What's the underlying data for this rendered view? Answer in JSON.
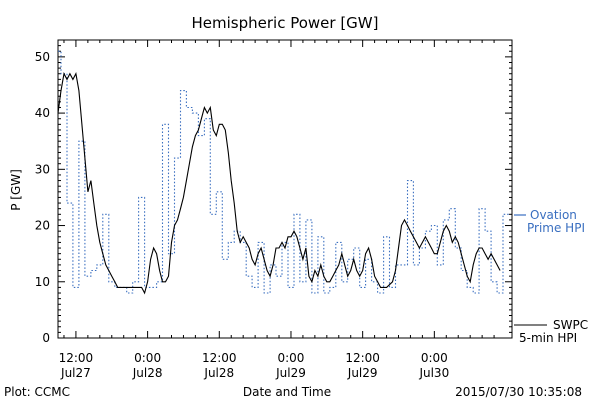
{
  "chart_data": {
    "type": "line",
    "title": "Hemispheric Power [GW]",
    "xlabel": "Date and Time",
    "ylabel": "P [GW]",
    "ylim": [
      0,
      53
    ],
    "xlim": [
      -3,
      73
    ],
    "yticks": [
      0,
      10,
      20,
      30,
      40,
      50
    ],
    "xticks": [
      {
        "x": 0,
        "time": "12:00",
        "date": "Jul27"
      },
      {
        "x": 12,
        "time": "0:00",
        "date": "Jul28"
      },
      {
        "x": 24,
        "time": "12:00",
        "date": "Jul28"
      },
      {
        "x": 36,
        "time": "0:00",
        "date": "Jul29"
      },
      {
        "x": 48,
        "time": "12:00",
        "date": "Jul29"
      },
      {
        "x": 60,
        "time": "0:00",
        "date": "Jul30"
      }
    ],
    "x_units": "hours after 2015-07-27 12:00 UT",
    "series": [
      {
        "name": "SWPC 5-min HPI",
        "legend_lines": [
          "SWPC",
          "5-min HPI"
        ],
        "color": "#000000",
        "style": "solid",
        "points": [
          [
            -3,
            40
          ],
          [
            -2.5,
            44
          ],
          [
            -2,
            47
          ],
          [
            -1.5,
            46
          ],
          [
            -1,
            47
          ],
          [
            -0.5,
            46
          ],
          [
            0,
            47
          ],
          [
            0.5,
            44
          ],
          [
            1,
            38
          ],
          [
            1.5,
            32
          ],
          [
            2,
            26
          ],
          [
            2.5,
            28
          ],
          [
            3,
            24
          ],
          [
            3.5,
            20
          ],
          [
            4,
            17
          ],
          [
            4.5,
            15
          ],
          [
            5,
            13
          ],
          [
            5.5,
            12
          ],
          [
            6,
            11
          ],
          [
            6.5,
            10
          ],
          [
            7,
            9
          ],
          [
            8,
            9
          ],
          [
            9,
            9
          ],
          [
            10,
            9
          ],
          [
            11,
            9
          ],
          [
            11.5,
            8
          ],
          [
            12,
            10
          ],
          [
            12.5,
            14
          ],
          [
            13,
            16
          ],
          [
            13.5,
            15
          ],
          [
            14,
            12
          ],
          [
            14.5,
            10
          ],
          [
            15,
            10
          ],
          [
            15.5,
            11
          ],
          [
            16,
            17
          ],
          [
            16.5,
            20
          ],
          [
            17,
            21
          ],
          [
            17.5,
            23
          ],
          [
            18,
            25
          ],
          [
            18.5,
            28
          ],
          [
            19,
            31
          ],
          [
            19.5,
            34
          ],
          [
            20,
            36
          ],
          [
            20.5,
            37
          ],
          [
            21,
            39
          ],
          [
            21.5,
            41
          ],
          [
            22,
            40
          ],
          [
            22.5,
            41
          ],
          [
            23,
            37
          ],
          [
            23.5,
            36
          ],
          [
            24,
            38
          ],
          [
            24.5,
            38
          ],
          [
            25,
            37
          ],
          [
            25.5,
            33
          ],
          [
            26,
            28
          ],
          [
            26.5,
            24
          ],
          [
            27,
            19
          ],
          [
            27.5,
            17
          ],
          [
            28,
            18
          ],
          [
            28.5,
            17
          ],
          [
            29,
            16
          ],
          [
            29.5,
            14
          ],
          [
            30,
            13
          ],
          [
            30.5,
            15
          ],
          [
            31,
            16
          ],
          [
            31.5,
            14
          ],
          [
            32,
            12
          ],
          [
            32.5,
            11
          ],
          [
            33,
            13
          ],
          [
            33.5,
            16
          ],
          [
            34,
            16
          ],
          [
            34.5,
            17
          ],
          [
            35,
            16
          ],
          [
            35.5,
            18
          ],
          [
            36,
            18
          ],
          [
            36.5,
            19
          ],
          [
            37,
            18
          ],
          [
            37.5,
            16
          ],
          [
            38,
            14
          ],
          [
            38.5,
            16
          ],
          [
            39,
            11
          ],
          [
            39.5,
            10
          ],
          [
            40,
            12
          ],
          [
            40.5,
            11
          ],
          [
            41,
            13
          ],
          [
            41.5,
            11
          ],
          [
            42,
            10
          ],
          [
            42.5,
            10
          ],
          [
            43,
            11
          ],
          [
            43.5,
            12
          ],
          [
            44,
            13
          ],
          [
            44.5,
            15
          ],
          [
            45,
            13
          ],
          [
            45.5,
            11
          ],
          [
            46,
            12
          ],
          [
            46.5,
            14
          ],
          [
            47,
            12
          ],
          [
            47.5,
            11
          ],
          [
            48,
            12
          ],
          [
            48.5,
            15
          ],
          [
            49,
            16
          ],
          [
            49.5,
            14
          ],
          [
            50,
            11
          ],
          [
            50.5,
            10
          ],
          [
            51,
            9
          ],
          [
            52,
            9
          ],
          [
            53,
            10
          ],
          [
            53.5,
            12
          ],
          [
            54,
            16
          ],
          [
            54.5,
            20
          ],
          [
            55,
            21
          ],
          [
            55.5,
            20
          ],
          [
            56,
            19
          ],
          [
            56.5,
            18
          ],
          [
            57,
            17
          ],
          [
            57.5,
            16
          ],
          [
            58,
            17
          ],
          [
            58.5,
            18
          ],
          [
            59,
            17
          ],
          [
            59.5,
            16
          ],
          [
            60,
            15
          ],
          [
            60.5,
            15
          ],
          [
            61,
            17
          ],
          [
            61.5,
            19
          ],
          [
            62,
            20
          ],
          [
            62.5,
            19
          ],
          [
            63,
            17
          ],
          [
            63.5,
            18
          ],
          [
            64,
            17
          ],
          [
            64.5,
            15
          ],
          [
            65,
            13
          ],
          [
            65.5,
            11
          ],
          [
            66,
            10
          ],
          [
            66.5,
            13
          ],
          [
            67,
            15
          ],
          [
            67.5,
            16
          ],
          [
            68,
            16
          ],
          [
            68.5,
            15
          ],
          [
            69,
            14
          ],
          [
            69.5,
            15
          ],
          [
            70,
            14
          ],
          [
            70.5,
            13
          ],
          [
            71,
            12
          ]
        ]
      },
      {
        "name": "Ovation Prime HPI",
        "legend_lines": [
          "Ovation",
          "Prime HPI"
        ],
        "color": "#3a6fc0",
        "style": "dotted-step",
        "steps": [
          [
            -3,
            -2.5,
            51
          ],
          [
            -2.5,
            -1.5,
            47
          ],
          [
            -1.5,
            -0.5,
            24
          ],
          [
            -0.5,
            0.5,
            9
          ],
          [
            0.5,
            1.5,
            35
          ],
          [
            1.5,
            2.5,
            11
          ],
          [
            2.5,
            3.5,
            12
          ],
          [
            3.5,
            4.5,
            13
          ],
          [
            4.5,
            5.5,
            22
          ],
          [
            5.5,
            6.5,
            10
          ],
          [
            6.5,
            7.5,
            9
          ],
          [
            7.5,
            8.5,
            9
          ],
          [
            8.5,
            9.5,
            8
          ],
          [
            9.5,
            10.5,
            10
          ],
          [
            10.5,
            11.5,
            25
          ],
          [
            11.5,
            12.5,
            9
          ],
          [
            12.5,
            13.5,
            9
          ],
          [
            13.5,
            14.5,
            10
          ],
          [
            14.5,
            15.5,
            38
          ],
          [
            15.5,
            16.5,
            15
          ],
          [
            16.5,
            17.5,
            32
          ],
          [
            17.5,
            18.5,
            44
          ],
          [
            18.5,
            19.5,
            41
          ],
          [
            19.5,
            20.5,
            40
          ],
          [
            20.5,
            21.5,
            36
          ],
          [
            21.5,
            22.5,
            39
          ],
          [
            22.5,
            23.5,
            22
          ],
          [
            23.5,
            24.5,
            26
          ],
          [
            24.5,
            25.5,
            14
          ],
          [
            25.5,
            26.5,
            17
          ],
          [
            26.5,
            27.5,
            19
          ],
          [
            27.5,
            28.5,
            17
          ],
          [
            28.5,
            29.5,
            11
          ],
          [
            29.5,
            30.5,
            9
          ],
          [
            30.5,
            31.5,
            17
          ],
          [
            31.5,
            32.5,
            8
          ],
          [
            32.5,
            33.5,
            13
          ],
          [
            33.5,
            34.5,
            11
          ],
          [
            34.5,
            35.5,
            17
          ],
          [
            35.5,
            36.5,
            9
          ],
          [
            36.5,
            37.5,
            22
          ],
          [
            37.5,
            38.5,
            10
          ],
          [
            38.5,
            39.5,
            21
          ],
          [
            39.5,
            40.5,
            8
          ],
          [
            40.5,
            41.5,
            18
          ],
          [
            41.5,
            42.5,
            8
          ],
          [
            42.5,
            43.5,
            9
          ],
          [
            43.5,
            44.5,
            17
          ],
          [
            44.5,
            45.5,
            10
          ],
          [
            45.5,
            46.5,
            14
          ],
          [
            46.5,
            47.5,
            16
          ],
          [
            47.5,
            48.5,
            9
          ],
          [
            48.5,
            49.5,
            14
          ],
          [
            49.5,
            50.5,
            10
          ],
          [
            50.5,
            51.5,
            8
          ],
          [
            51.5,
            52.5,
            18
          ],
          [
            52.5,
            53.5,
            9
          ],
          [
            53.5,
            54.5,
            13
          ],
          [
            54.5,
            55.5,
            13
          ],
          [
            55.5,
            56.5,
            28
          ],
          [
            56.5,
            57.5,
            13
          ],
          [
            57.5,
            58.5,
            16
          ],
          [
            58.5,
            59.5,
            19
          ],
          [
            59.5,
            60.5,
            20
          ],
          [
            60.5,
            61.5,
            13
          ],
          [
            61.5,
            62.5,
            21
          ],
          [
            62.5,
            63.5,
            23
          ],
          [
            63.5,
            64.5,
            16
          ],
          [
            64.5,
            65.5,
            12
          ],
          [
            65.5,
            66.5,
            9
          ],
          [
            66.5,
            67.5,
            8
          ],
          [
            67.5,
            68.5,
            23
          ],
          [
            68.5,
            69.5,
            19
          ],
          [
            69.5,
            70.5,
            10
          ],
          [
            70.5,
            71.5,
            8
          ],
          [
            71.5,
            72.5,
            22
          ]
        ]
      }
    ],
    "footer": {
      "left": "Plot: CCMC",
      "center": "Date and Time",
      "right": "2015/07/30 10:35:08"
    }
  }
}
